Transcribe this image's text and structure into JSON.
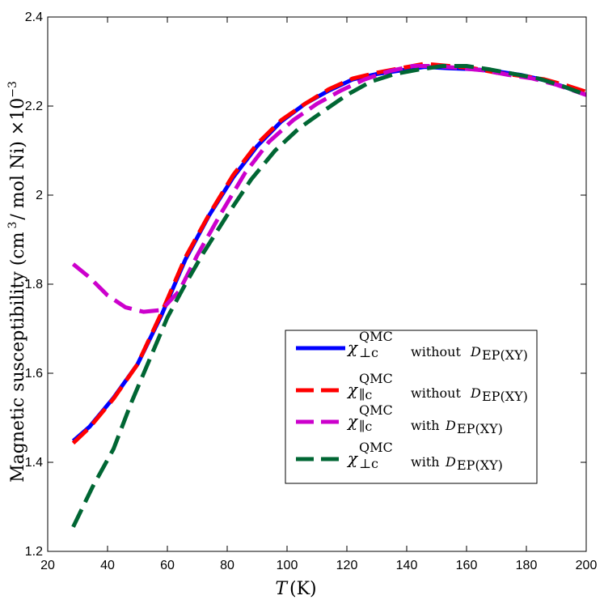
{
  "chart_data": {
    "type": "line",
    "title": "",
    "xlabel": "T (K)",
    "xlabel_var": "T",
    "xlabel_unit": "(K)",
    "ylabel": "Magnetic susceptibility (cm ³/ mol Ni) ×10⁻³",
    "ylabel_main": "Magnetic susceptibility (cm",
    "ylabel_sup3": "3",
    "ylabel_rest": "/ mol Ni) ×10",
    "ylabel_exp": "−3",
    "xlim": [
      20,
      200
    ],
    "ylim": [
      1.2,
      2.4
    ],
    "xticks": [
      20,
      40,
      60,
      80,
      100,
      120,
      140,
      160,
      180,
      200
    ],
    "yticks": [
      1.2,
      1.4,
      1.6,
      1.8,
      2,
      2.2,
      2.4
    ],
    "grid": false,
    "legend_position": "lower-right",
    "series": [
      {
        "name": "χ⊥c QMC without D EP(XY)",
        "symbol": "χ",
        "sup": "QMC",
        "sub": "⊥c",
        "desc": "without",
        "d_var": "D",
        "d_sub": "EP(XY)",
        "color": "#0000ff",
        "style": "solid",
        "x": [
          28.5,
          34,
          42,
          50,
          58,
          66,
          74,
          82,
          90,
          98,
          106,
          114,
          122,
          130,
          138,
          146,
          154,
          162,
          170,
          178,
          186,
          194,
          200
        ],
        "y": [
          1.448,
          1.48,
          1.545,
          1.62,
          1.73,
          1.855,
          1.955,
          2.04,
          2.11,
          2.165,
          2.205,
          2.235,
          2.26,
          2.272,
          2.28,
          2.288,
          2.285,
          2.283,
          2.278,
          2.27,
          2.258,
          2.24,
          2.225
        ]
      },
      {
        "name": "χ∥c QMC without D EP(XY)",
        "symbol": "χ",
        "sup": "QMC",
        "sub": "∥c",
        "desc": "without",
        "d_var": "D",
        "d_sub": "EP(XY)",
        "color": "#ff0000",
        "style": "dashed",
        "x": [
          28.5,
          34,
          42,
          50,
          58,
          66,
          74,
          82,
          90,
          98,
          106,
          114,
          122,
          130,
          138,
          146,
          154,
          162,
          170,
          178,
          186,
          194,
          200
        ],
        "y": [
          1.443,
          1.478,
          1.543,
          1.62,
          1.735,
          1.86,
          1.957,
          2.045,
          2.115,
          2.168,
          2.205,
          2.238,
          2.262,
          2.275,
          2.285,
          2.295,
          2.29,
          2.285,
          2.275,
          2.268,
          2.26,
          2.245,
          2.232
        ]
      },
      {
        "name": "χ∥c QMC with D EP(XY)",
        "symbol": "χ",
        "sup": "QMC",
        "sub": "∥c",
        "desc": "with",
        "d_var": "D",
        "d_sub": "EP(XY)",
        "color": "#cc00cc",
        "style": "dashed",
        "x": [
          28.5,
          34,
          40,
          46,
          52,
          58,
          64,
          70,
          78,
          86,
          94,
          102,
          110,
          118,
          126,
          134,
          142,
          150,
          158,
          166,
          174,
          182,
          190,
          200
        ],
        "y": [
          1.845,
          1.815,
          1.775,
          1.748,
          1.738,
          1.742,
          1.785,
          1.865,
          1.96,
          2.05,
          2.12,
          2.168,
          2.205,
          2.235,
          2.26,
          2.278,
          2.29,
          2.29,
          2.285,
          2.28,
          2.27,
          2.262,
          2.248,
          2.225
        ]
      },
      {
        "name": "χ⊥c QMC with D EP(XY)",
        "symbol": "χ",
        "sup": "QMC",
        "sub": "⊥c",
        "desc": "with",
        "d_var": "D",
        "d_sub": "EP(XY)",
        "color": "#006633",
        "style": "dashed",
        "x": [
          28.5,
          35,
          42,
          48,
          54,
          60,
          66,
          72,
          80,
          88,
          96,
          104,
          112,
          120,
          128,
          136,
          144,
          152,
          160,
          168,
          176,
          184,
          192,
          200
        ],
        "y": [
          1.255,
          1.345,
          1.43,
          1.535,
          1.63,
          1.725,
          1.8,
          1.87,
          1.955,
          2.035,
          2.1,
          2.15,
          2.188,
          2.225,
          2.255,
          2.272,
          2.282,
          2.29,
          2.29,
          2.282,
          2.272,
          2.262,
          2.245,
          2.225
        ]
      }
    ]
  }
}
